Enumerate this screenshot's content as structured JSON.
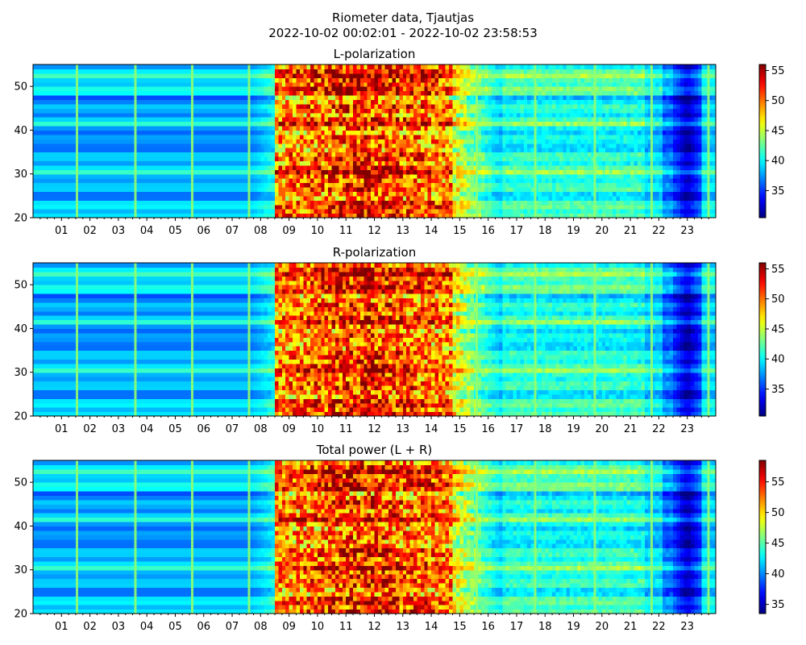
{
  "title": "Riometer data, Tjautjas",
  "subtitle": "2022-10-02 00:02:01 - 2022-10-02 23:58:53",
  "colormap": "jet",
  "chart_data": [
    {
      "type": "heatmap",
      "title": "L-polarization",
      "xlabel": "",
      "ylabel": "",
      "x_tick_labels": [
        "01",
        "02",
        "03",
        "04",
        "05",
        "06",
        "07",
        "08",
        "09",
        "10",
        "11",
        "12",
        "13",
        "14",
        "15",
        "16",
        "17",
        "18",
        "19",
        "20",
        "21",
        "22",
        "23"
      ],
      "x_range_hours": [
        0,
        24
      ],
      "y_ticks": [
        20,
        30,
        40,
        50
      ],
      "ylim": [
        20,
        55
      ],
      "colorbar": {
        "ticks": [
          35,
          40,
          45,
          50,
          55
        ],
        "range": [
          30.5,
          56
        ]
      },
      "bright_columns_hours": [
        1.55,
        3.6,
        5.6,
        7.6,
        15.6,
        17.65,
        19.75,
        21.75,
        23.75
      ],
      "dark_period_hours": [
        22.5,
        23.5
      ],
      "active_period_hours": [
        8.7,
        14.8
      ]
    },
    {
      "type": "heatmap",
      "title": "R-polarization",
      "xlabel": "",
      "ylabel": "",
      "x_tick_labels": [
        "01",
        "02",
        "03",
        "04",
        "05",
        "06",
        "07",
        "08",
        "09",
        "10",
        "11",
        "12",
        "13",
        "14",
        "15",
        "16",
        "17",
        "18",
        "19",
        "20",
        "21",
        "22",
        "23"
      ],
      "x_range_hours": [
        0,
        24
      ],
      "y_ticks": [
        20,
        30,
        40,
        50
      ],
      "ylim": [
        20,
        55
      ],
      "colorbar": {
        "ticks": [
          35,
          40,
          45,
          50,
          55
        ],
        "range": [
          30.5,
          56
        ]
      },
      "bright_columns_hours": [
        1.55,
        3.6,
        5.6,
        7.6,
        15.6,
        17.65,
        19.75,
        21.75,
        23.75
      ],
      "dark_period_hours": [
        22.5,
        23.5
      ],
      "active_period_hours": [
        8.7,
        14.8
      ]
    },
    {
      "type": "heatmap",
      "title": "Total power (L + R)",
      "xlabel": "",
      "ylabel": "",
      "x_tick_labels": [
        "01",
        "02",
        "03",
        "04",
        "05",
        "06",
        "07",
        "08",
        "09",
        "10",
        "11",
        "12",
        "13",
        "14",
        "15",
        "16",
        "17",
        "18",
        "19",
        "20",
        "21",
        "22",
        "23"
      ],
      "x_range_hours": [
        0,
        24
      ],
      "y_ticks": [
        20,
        30,
        40,
        50
      ],
      "ylim": [
        20,
        55
      ],
      "colorbar": {
        "ticks": [
          35,
          40,
          45,
          50,
          55
        ],
        "range": [
          33.5,
          58.5
        ]
      },
      "bright_columns_hours": [
        1.55,
        3.6,
        5.6,
        7.6,
        15.6,
        17.65,
        19.75,
        21.75,
        23.75
      ],
      "dark_period_hours": [
        22.5,
        23.5
      ],
      "active_period_hours": [
        8.7,
        14.8
      ]
    }
  ]
}
